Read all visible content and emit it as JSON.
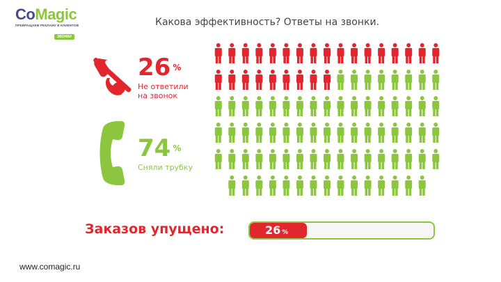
{
  "logo": {
    "brand_a": "Co",
    "brand_b": "Magic",
    "tagline": "ПРЕВРАЩАЕМ РЕКЛАМУ В КЛИЕНТОВ",
    "badge": "ЗВОНКИ"
  },
  "slide_title": "Какова эффективность? Ответы на звонки.",
  "missed": {
    "value": "26",
    "unit": "%",
    "label_line1": "Не ответили",
    "label_line2": "на звонок",
    "icon": "crossed-phone-icon",
    "color": "#e1262d"
  },
  "answered": {
    "value": "74",
    "unit": "%",
    "label": "Сняли трубку",
    "icon": "phone-handset-icon",
    "color": "#8cc63f"
  },
  "people_grid": {
    "total": 100,
    "red_count": 26,
    "icon": "person-icon"
  },
  "orders_missed": {
    "label": "Заказов упущено:",
    "value": "26",
    "unit": "%",
    "fraction": 0.26
  },
  "footer": {
    "url": "www.comagic.ru"
  }
}
